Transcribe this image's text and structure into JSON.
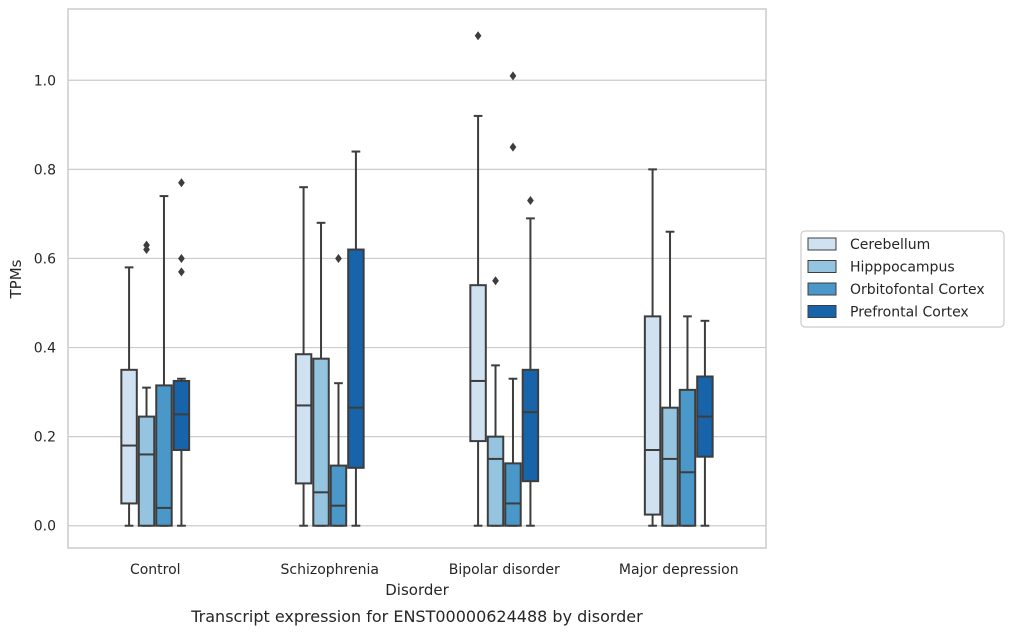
{
  "chart_data": {
    "type": "box",
    "caption": "Transcript expression for ENST00000624488 by disorder",
    "xlabel": "Disorder",
    "ylabel": "TPMs",
    "ylim": [
      -0.05,
      1.16
    ],
    "yticks": [
      0.0,
      0.2,
      0.4,
      0.6,
      0.8,
      1.0
    ],
    "ytick_labels": [
      "0.0",
      "0.2",
      "0.4",
      "0.6",
      "0.8",
      "1.0"
    ],
    "grid": true,
    "legend_placement": "right",
    "categories": [
      "Control",
      "Schizophrenia",
      "Bipolar disorder",
      "Major depression"
    ],
    "series": [
      {
        "name": "Cerebellum",
        "color": "#d0e1f2",
        "boxes": [
          {
            "whisker_low": 0.0,
            "q1": 0.05,
            "median": 0.18,
            "q3": 0.35,
            "whisker_high": 0.58,
            "outliers": []
          },
          {
            "whisker_low": 0.0,
            "q1": 0.095,
            "median": 0.27,
            "q3": 0.385,
            "whisker_high": 0.76,
            "outliers": []
          },
          {
            "whisker_low": 0.0,
            "q1": 0.19,
            "median": 0.325,
            "q3": 0.54,
            "whisker_high": 0.92,
            "outliers": [
              1.1
            ]
          },
          {
            "whisker_low": 0.0,
            "q1": 0.025,
            "median": 0.17,
            "q3": 0.47,
            "whisker_high": 0.8,
            "outliers": []
          }
        ]
      },
      {
        "name": "Hipppocampus",
        "color": "#94c4df",
        "boxes": [
          {
            "whisker_low": 0.0,
            "q1": 0.0,
            "median": 0.16,
            "q3": 0.245,
            "whisker_high": 0.31,
            "outliers": [
              0.62,
              0.63
            ]
          },
          {
            "whisker_low": 0.0,
            "q1": 0.0,
            "median": 0.075,
            "q3": 0.375,
            "whisker_high": 0.68,
            "outliers": []
          },
          {
            "whisker_low": 0.0,
            "q1": 0.0,
            "median": 0.15,
            "q3": 0.2,
            "whisker_high": 0.36,
            "outliers": [
              0.55
            ]
          },
          {
            "whisker_low": 0.0,
            "q1": 0.0,
            "median": 0.15,
            "q3": 0.265,
            "whisker_high": 0.66,
            "outliers": []
          }
        ]
      },
      {
        "name": "Orbitofontal Cortex",
        "color": "#4a98c9",
        "boxes": [
          {
            "whisker_low": 0.0,
            "q1": 0.0,
            "median": 0.04,
            "q3": 0.315,
            "whisker_high": 0.74,
            "outliers": []
          },
          {
            "whisker_low": 0.0,
            "q1": 0.0,
            "median": 0.045,
            "q3": 0.135,
            "whisker_high": 0.32,
            "outliers": [
              0.6
            ]
          },
          {
            "whisker_low": 0.0,
            "q1": 0.0,
            "median": 0.05,
            "q3": 0.14,
            "whisker_high": 0.33,
            "outliers": [
              0.85,
              1.01
            ]
          },
          {
            "whisker_low": 0.0,
            "q1": 0.0,
            "median": 0.12,
            "q3": 0.305,
            "whisker_high": 0.47,
            "outliers": []
          }
        ]
      },
      {
        "name": "Prefrontal Cortex",
        "color": "#1764ab",
        "boxes": [
          {
            "whisker_low": 0.0,
            "q1": 0.17,
            "median": 0.25,
            "q3": 0.325,
            "whisker_high": 0.33,
            "outliers": [
              0.57,
              0.6,
              0.77
            ]
          },
          {
            "whisker_low": 0.0,
            "q1": 0.13,
            "median": 0.265,
            "q3": 0.62,
            "whisker_high": 0.84,
            "outliers": []
          },
          {
            "whisker_low": 0.0,
            "q1": 0.1,
            "median": 0.255,
            "q3": 0.35,
            "whisker_high": 0.69,
            "outliers": [
              0.73
            ]
          },
          {
            "whisker_low": 0.0,
            "q1": 0.155,
            "median": 0.245,
            "q3": 0.335,
            "whisker_high": 0.46,
            "outliers": []
          }
        ]
      }
    ]
  }
}
